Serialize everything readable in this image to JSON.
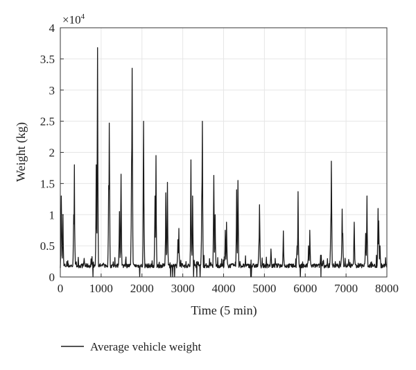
{
  "chart_data": {
    "type": "line",
    "title": "",
    "xlabel": "Time (5 min)",
    "ylabel": "Weight (kg)",
    "xlim": [
      0,
      8000
    ],
    "ylim": [
      0,
      40000
    ],
    "y_multiplier_label": "×10",
    "y_multiplier_exp": "4",
    "xticks": [
      0,
      1000,
      2000,
      3000,
      4000,
      5000,
      6000,
      7000,
      8000
    ],
    "yticks": [
      0,
      0.5,
      1,
      1.5,
      2,
      2.5,
      3,
      3.5,
      4
    ],
    "grid": true,
    "legend_position": "bottom-left",
    "series": [
      {
        "name": "Average vehicle weight",
        "color": "#1a1a1a",
        "baseline": 1800,
        "peaks": [
          [
            20,
            13000
          ],
          [
            60,
            10000
          ],
          [
            340,
            18000
          ],
          [
            330,
            10000
          ],
          [
            580,
            3000
          ],
          [
            880,
            18000
          ],
          [
            910,
            36800
          ],
          [
            1180,
            14700
          ],
          [
            1200,
            24700
          ],
          [
            1450,
            10500
          ],
          [
            1490,
            16500
          ],
          [
            1760,
            33500
          ],
          [
            1740,
            18000
          ],
          [
            2040,
            25000
          ],
          [
            2050,
            12000
          ],
          [
            2340,
            19500
          ],
          [
            2320,
            13000
          ],
          [
            2580,
            13500
          ],
          [
            2620,
            15200
          ],
          [
            2900,
            7800
          ],
          [
            2880,
            6000
          ],
          [
            3200,
            18800
          ],
          [
            3240,
            13000
          ],
          [
            3480,
            25000
          ],
          [
            3460,
            12000
          ],
          [
            3760,
            16300
          ],
          [
            3790,
            10000
          ],
          [
            4040,
            7500
          ],
          [
            4070,
            8800
          ],
          [
            4320,
            14000
          ],
          [
            4350,
            15500
          ],
          [
            4860,
            5000
          ],
          [
            4880,
            11600
          ],
          [
            5160,
            4500
          ],
          [
            5460,
            7400
          ],
          [
            5800,
            5000
          ],
          [
            5820,
            13700
          ],
          [
            6080,
            5000
          ],
          [
            6110,
            7500
          ],
          [
            6380,
            5800
          ],
          [
            6640,
            18600
          ],
          [
            6620,
            8000
          ],
          [
            6900,
            10900
          ],
          [
            6920,
            7000
          ],
          [
            7200,
            8800
          ],
          [
            7480,
            7000
          ],
          [
            7510,
            13000
          ],
          [
            7780,
            11000
          ],
          [
            7800,
            9000
          ],
          [
            7830,
            5000
          ]
        ],
        "dips": [
          [
            800,
            0
          ],
          [
            1940,
            0
          ],
          [
            2700,
            0
          ],
          [
            2750,
            0
          ],
          [
            2800,
            0
          ],
          [
            3260,
            0
          ],
          [
            3340,
            0
          ],
          [
            3420,
            0
          ],
          [
            4660,
            0
          ],
          [
            4680,
            0
          ],
          [
            5880,
            0
          ],
          [
            6380,
            0
          ]
        ]
      }
    ]
  }
}
